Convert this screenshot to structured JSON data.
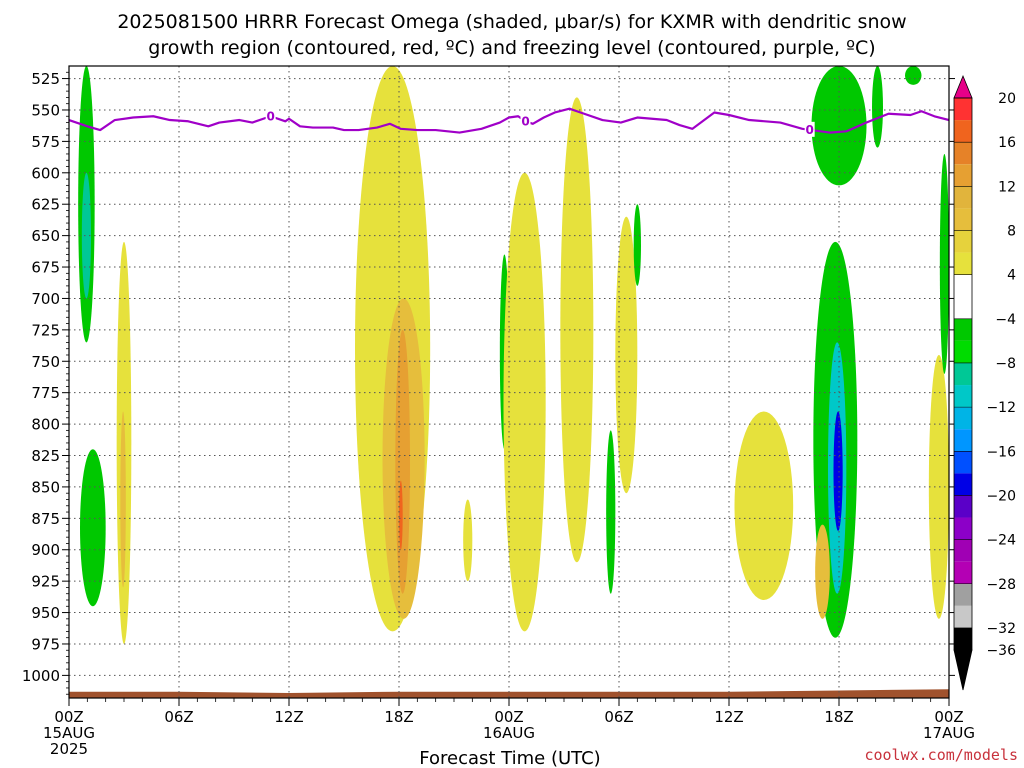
{
  "colors": {
    "freezing_level": "#a000c8",
    "terrain": "#a0522d",
    "credit": "#c8323c",
    "grid": "#555555"
  },
  "chart_data": {
    "type": "heatmap",
    "title_line1": "2025081500 HRRR Forecast Omega (shaded, μbar/s) for KXMR with dendritic snow",
    "title_line2": "growth region (contoured, red, ºC) and freezing level (contoured, purple, ºC)",
    "xlabel": "Forecast Time (UTC)",
    "credit": "coolwx.com/models",
    "y_axis": {
      "quantity": "pressure_hPa",
      "inverted": true,
      "range": [
        1018,
        515
      ],
      "ticks": [
        525,
        550,
        575,
        600,
        625,
        650,
        675,
        700,
        725,
        750,
        775,
        800,
        825,
        850,
        875,
        900,
        925,
        950,
        975,
        1000
      ]
    },
    "x_axis": {
      "unit": "hours since 2025081500",
      "range": [
        0,
        48
      ],
      "ticks": [
        {
          "hour": 0,
          "label": "00Z",
          "sub1": "15AUG",
          "sub2": "2025"
        },
        {
          "hour": 6,
          "label": "06Z"
        },
        {
          "hour": 12,
          "label": "12Z"
        },
        {
          "hour": 18,
          "label": "18Z"
        },
        {
          "hour": 24,
          "label": "00Z",
          "sub1": "16AUG"
        },
        {
          "hour": 30,
          "label": "06Z"
        },
        {
          "hour": 36,
          "label": "12Z"
        },
        {
          "hour": 42,
          "label": "18Z"
        },
        {
          "hour": 48,
          "label": "00Z",
          "sub1": "17AUG"
        }
      ]
    },
    "grid": true,
    "colorbar": {
      "position": "right",
      "levels": [
        {
          "color": "#e60088"
        },
        {
          "color": "#ff3232",
          "label": "20"
        },
        {
          "color": "#f0641e"
        },
        {
          "color": "#e68228",
          "label": "16"
        },
        {
          "color": "#e6a032"
        },
        {
          "color": "#e1b43c",
          "label": "12"
        },
        {
          "color": "#e6be3c"
        },
        {
          "color": "#e6d23c",
          "label": "8"
        },
        {
          "color": "#e6e13c"
        },
        {
          "color": "#ffffff",
          "label": "4"
        },
        {
          "color": "#ffffff"
        },
        {
          "color": "#00c800",
          "label": "−4"
        },
        {
          "color": "#00dc00"
        },
        {
          "color": "#00c896",
          "label": "−8"
        },
        {
          "color": "#00c8c8"
        },
        {
          "color": "#00b4e6",
          "label": "−12"
        },
        {
          "color": "#0096ff"
        },
        {
          "color": "#0050ff",
          "label": "−16"
        },
        {
          "color": "#0000e6"
        },
        {
          "color": "#5a00c8",
          "label": "−20"
        },
        {
          "color": "#8c00c8"
        },
        {
          "color": "#a000b4",
          "label": "−24"
        },
        {
          "color": "#b400b4"
        },
        {
          "color": "#a0a0a0",
          "label": "−28"
        },
        {
          "color": "#c8c8c8"
        },
        {
          "color": "#000000",
          "label": "−32"
        },
        {
          "color": "#000000",
          "label": "−36"
        }
      ]
    },
    "freezing_level": {
      "contour_label": "0",
      "hours": [
        0,
        1,
        1.7,
        2.5,
        3.5,
        4.6,
        5.5,
        6.5,
        7.6,
        8.2,
        9.3,
        10,
        10.6,
        11,
        11.8,
        12,
        12.6,
        13.3,
        14.4,
        15,
        15.8,
        16.8,
        17.5,
        18.1,
        19,
        20,
        21.3,
        22.5,
        23.5,
        24,
        24.5,
        24.9,
        25.3,
        25.9,
        26.5,
        27.3,
        28.1,
        29.1,
        30.1,
        31,
        32.6,
        33.3,
        34,
        35.2,
        36,
        37.1,
        38.8,
        40,
        41.5,
        42.4,
        43.5,
        44.7,
        45.9,
        46.5,
        47.2,
        48
      ],
      "pressure": [
        558,
        563,
        566,
        558,
        556,
        555,
        558,
        559,
        563,
        560,
        558,
        560,
        557,
        555,
        559,
        557,
        563,
        564,
        564,
        566,
        566,
        564,
        561,
        565,
        566,
        566,
        568,
        565,
        560,
        556,
        555,
        559,
        561,
        556,
        552,
        549,
        553,
        558,
        560,
        556,
        558,
        562,
        565,
        552,
        554,
        558,
        560,
        565,
        568,
        567,
        560,
        553,
        554,
        551,
        555,
        558
      ],
      "labels_at_hours": [
        11,
        24.9,
        40.4
      ]
    },
    "omega_features": [
      {
        "kind": "rising",
        "level": -4,
        "hours": [
          0.5,
          1.4
        ],
        "pressure": [
          515,
          735
        ]
      },
      {
        "kind": "rising",
        "level": -8,
        "hours": [
          0.7,
          1.2
        ],
        "pressure": [
          600,
          700
        ]
      },
      {
        "kind": "rising",
        "level": -4,
        "hours": [
          0.6,
          2.0
        ],
        "pressure": [
          820,
          945
        ]
      },
      {
        "kind": "sinking",
        "level": 4,
        "hours": [
          2.6,
          3.4
        ],
        "pressure": [
          655,
          975
        ]
      },
      {
        "kind": "sinking",
        "level": 8,
        "hours": [
          2.8,
          3.1
        ],
        "pressure": [
          790,
          930
        ]
      },
      {
        "kind": "sinking",
        "level": 4,
        "hours": [
          15.6,
          19.7
        ],
        "pressure": [
          515,
          965
        ]
      },
      {
        "kind": "sinking",
        "level": 8,
        "hours": [
          17.1,
          19.4
        ],
        "pressure": [
          700,
          955
        ]
      },
      {
        "kind": "sinking",
        "level": 12,
        "hours": [
          17.8,
          18.6
        ],
        "pressure": [
          725,
          935
        ]
      },
      {
        "kind": "sinking",
        "level": 16,
        "hours": [
          18.0,
          18.2
        ],
        "pressure": [
          845,
          900
        ]
      },
      {
        "kind": "sinking",
        "level": 4,
        "hours": [
          21.5,
          22.0
        ],
        "pressure": [
          860,
          925
        ]
      },
      {
        "kind": "rising",
        "level": -4,
        "hours": [
          23.5,
          24.0
        ],
        "pressure": [
          665,
          820
        ]
      },
      {
        "kind": "sinking",
        "level": 4,
        "hours": [
          23.7,
          26.0
        ],
        "pressure": [
          600,
          965
        ]
      },
      {
        "kind": "sinking",
        "level": 4,
        "hours": [
          26.8,
          28.6
        ],
        "pressure": [
          540,
          910
        ]
      },
      {
        "kind": "rising",
        "level": -4,
        "hours": [
          29.3,
          29.8
        ],
        "pressure": [
          805,
          935
        ]
      },
      {
        "kind": "sinking",
        "level": 4,
        "hours": [
          29.8,
          31.0
        ],
        "pressure": [
          635,
          855
        ]
      },
      {
        "kind": "rising",
        "level": -4,
        "hours": [
          30.8,
          31.2
        ],
        "pressure": [
          625,
          690
        ]
      },
      {
        "kind": "sinking",
        "level": 4,
        "hours": [
          36.3,
          39.5
        ],
        "pressure": [
          790,
          940
        ]
      },
      {
        "kind": "rising",
        "level": -4,
        "hours": [
          40.5,
          43.5
        ],
        "pressure": [
          515,
          610
        ]
      },
      {
        "kind": "rising",
        "level": -4,
        "hours": [
          40.6,
          43.0
        ],
        "pressure": [
          655,
          970
        ]
      },
      {
        "kind": "rising",
        "level": -12,
        "hours": [
          41.4,
          42.4
        ],
        "pressure": [
          735,
          935
        ]
      },
      {
        "kind": "rising",
        "level": -20,
        "hours": [
          41.7,
          42.2
        ],
        "pressure": [
          790,
          885
        ]
      },
      {
        "kind": "sinking",
        "level": 8,
        "hours": [
          40.7,
          41.5
        ],
        "pressure": [
          880,
          955
        ]
      },
      {
        "kind": "rising",
        "level": -4,
        "hours": [
          43.8,
          44.4
        ],
        "pressure": [
          515,
          580
        ]
      },
      {
        "kind": "rising",
        "level": -4,
        "hours": [
          45.6,
          46.5
        ],
        "pressure": [
          515,
          530
        ]
      },
      {
        "kind": "sinking",
        "level": 4,
        "hours": [
          46.9,
          48.0
        ],
        "pressure": [
          745,
          955
        ]
      },
      {
        "kind": "rising",
        "level": -4,
        "hours": [
          47.5,
          48.0
        ],
        "pressure": [
          585,
          760
        ]
      }
    ],
    "terrain": {
      "hours": [
        0,
        6,
        12,
        18,
        24,
        30,
        36,
        42,
        48
      ],
      "pressure": [
        1013,
        1013,
        1014,
        1013,
        1013,
        1013,
        1013,
        1012,
        1011
      ]
    }
  }
}
